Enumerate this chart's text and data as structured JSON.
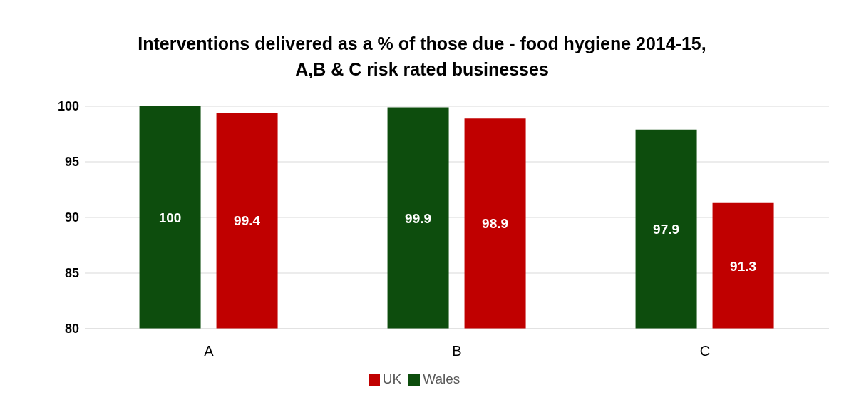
{
  "chart_data": {
    "type": "bar",
    "title": "Interventions delivered as a % of those due - food hygiene 2014-15,\nA,B & C risk rated businesses",
    "categories": [
      "A",
      "B",
      "C"
    ],
    "series": [
      {
        "name": "Wales",
        "color": "#0d4d0d",
        "values": [
          100,
          99.9,
          97.9
        ]
      },
      {
        "name": "UK",
        "color": "#c00000",
        "values": [
          99.4,
          98.9,
          91.3
        ]
      }
    ],
    "ylim": [
      80,
      100
    ],
    "yticks": [
      80,
      85,
      90,
      95,
      100
    ],
    "grid": "y",
    "legend": "bottom",
    "data_labels": true
  }
}
